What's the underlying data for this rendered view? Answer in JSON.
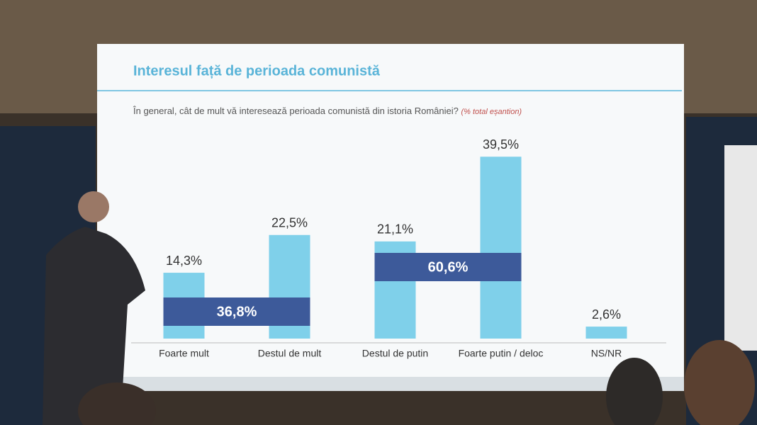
{
  "chart_data": {
    "type": "bar",
    "title": "Interesul față de perioada comunistă",
    "subtitle": "În general, cât de mult vă interesează perioada comunistă din istoria României?",
    "note": "(% total eșantion)",
    "categories": [
      "Foarte mult",
      "Destul de mult",
      "Destul de putin",
      "Foarte putin / deloc",
      "NS/NR"
    ],
    "values": [
      14.3,
      22.5,
      21.1,
      39.5,
      2.6
    ],
    "value_labels": [
      "14,3%",
      "22,5%",
      "21,1%",
      "39,5%",
      "2,6%"
    ],
    "color": "#7fd0ea",
    "groups": {
      "values": [
        36.8,
        60.6
      ],
      "value_labels": [
        "36,8%",
        "60,6%"
      ],
      "color": "#3d5a9a"
    }
  }
}
